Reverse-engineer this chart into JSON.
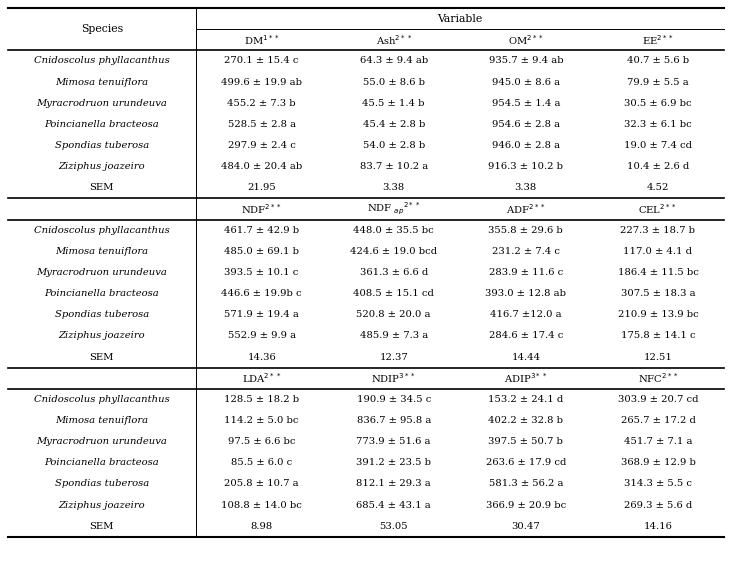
{
  "title": "Variable",
  "species_col_header": "Species",
  "sections": [
    {
      "col_headers": [
        "DM$^{1**}$",
        "Ash$^{2**}$",
        "OM$^{2**}$",
        "EE$^{2**}$"
      ],
      "rows": [
        [
          "Cnidoscolus phyllacanthus",
          "270.1 ± 15.4 c",
          "64.3 ± 9.4 ab",
          "935.7 ± 9.4 ab",
          "40.7 ± 5.6 b"
        ],
        [
          "Mimosa tenuiflora",
          "499.6 ± 19.9 ab",
          "55.0 ± 8.6 b",
          "945.0 ± 8.6 a",
          "79.9 ± 5.5 a"
        ],
        [
          "Myracrodruon urundeuva",
          "455.2 ± 7.3 b",
          "45.5 ± 1.4 b",
          "954.5 ± 1.4 a",
          "30.5 ± 6.9 bc"
        ],
        [
          "Poincianella bracteosa",
          "528.5 ± 2.8 a",
          "45.4 ± 2.8 b",
          "954.6 ± 2.8 a",
          "32.3 ± 6.1 bc"
        ],
        [
          "Spondias tuberosa",
          "297.9 ± 2.4 c",
          "54.0 ± 2.8 b",
          "946.0 ± 2.8 a",
          "19.0 ± 7.4 cd"
        ],
        [
          "Ziziphus joazeiro",
          "484.0 ± 20.4 ab",
          "83.7 ± 10.2 a",
          "916.3 ± 10.2 b",
          "10.4 ± 2.6 d"
        ],
        [
          "SEM",
          "21.95",
          "3.38",
          "3.38",
          "4.52"
        ]
      ]
    },
    {
      "col_headers": [
        "NDF$^{2**}$",
        "NDF $_{ap}$$^{2**}$",
        "ADF$^{2**}$",
        "CEL$^{2**}$"
      ],
      "rows": [
        [
          "Cnidoscolus phyllacanthus",
          "461.7 ± 42.9 b",
          "448.0 ± 35.5 bc",
          "355.8 ± 29.6 b",
          "227.3 ± 18.7 b"
        ],
        [
          "Mimosa tenuiflora",
          "485.0 ± 69.1 b",
          "424.6 ± 19.0 bcd",
          "231.2 ± 7.4 c",
          "117.0 ± 4.1 d"
        ],
        [
          "Myracrodruon urundeuva",
          "393.5 ± 10.1 c",
          "361.3 ± 6.6 d",
          "283.9 ± 11.6 c",
          "186.4 ± 11.5 bc"
        ],
        [
          "Poincianella bracteosa",
          "446.6 ± 19.9b c",
          "408.5 ± 15.1 cd",
          "393.0 ± 12.8 ab",
          "307.5 ± 18.3 a"
        ],
        [
          "Spondias tuberosa",
          "571.9 ± 19.4 a",
          "520.8 ± 20.0 a",
          "416.7 ±12.0 a",
          "210.9 ± 13.9 bc"
        ],
        [
          "Ziziphus joazeiro",
          "552.9 ± 9.9 a",
          "485.9 ± 7.3 a",
          "284.6 ± 17.4 c",
          "175.8 ± 14.1 c"
        ],
        [
          "SEM",
          "14.36",
          "12.37",
          "14.44",
          "12.51"
        ]
      ]
    },
    {
      "col_headers": [
        "LDA$^{2**}$",
        "NDIP$^{3**}$",
        "ADIP$^{3**}$",
        "NFC$^{2**}$"
      ],
      "rows": [
        [
          "Cnidoscolus phyllacanthus",
          "128.5 ± 18.2 b",
          "190.9 ± 34.5 c",
          "153.2 ± 24.1 d",
          "303.9 ± 20.7 cd"
        ],
        [
          "Mimosa tenuiflora",
          "114.2 ± 5.0 bc",
          "836.7 ± 95.8 a",
          "402.2 ± 32.8 b",
          "265.7 ± 17.2 d"
        ],
        [
          "Myracrodruon urundeuva",
          "97.5 ± 6.6 bc",
          "773.9 ± 51.6 a",
          "397.5 ± 50.7 b",
          "451.7 ± 7.1 a"
        ],
        [
          "Poincianella bracteosa",
          "85.5 ± 6.0 c",
          "391.2 ± 23.5 b",
          "263.6 ± 17.9 cd",
          "368.9 ± 12.9 b"
        ],
        [
          "Spondias tuberosa",
          "205.8 ± 10.7 a",
          "812.1 ± 29.3 a",
          "581.3 ± 56.2 a",
          "314.3 ± 5.5 c"
        ],
        [
          "Ziziphus joazeiro",
          "108.8 ± 14.0 bc",
          "685.4 ± 43.1 a",
          "366.9 ± 20.9 bc",
          "269.3 ± 5.6 d"
        ],
        [
          "SEM",
          "8.98",
          "53.05",
          "30.47",
          "14.16"
        ]
      ]
    }
  ],
  "italic_species": [
    "Cnidoscolus phyllacanthus",
    "Mimosa tenuiflora",
    "Myracrodruon urundeuva",
    "Poincianella bracteosa",
    "Spondias tuberosa",
    "Ziziphus joazeiro"
  ],
  "bg_color": "white",
  "text_color": "black",
  "line_color": "black",
  "font_size": 7.2,
  "header_font_size": 7.8
}
